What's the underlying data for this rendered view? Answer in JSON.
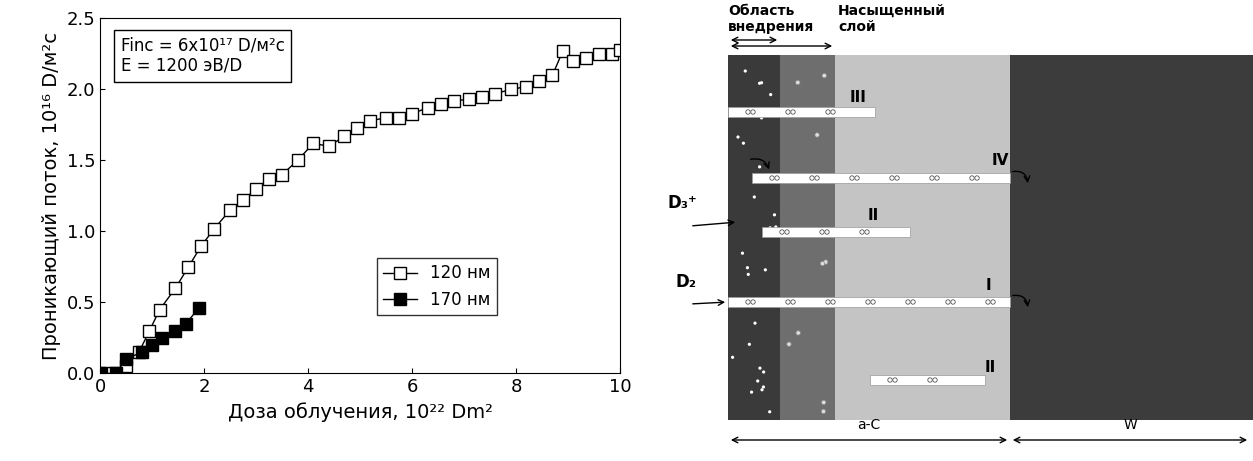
{
  "chart_data": {
    "type": "line",
    "x_label": "Доза облучения, 10²² Dm²",
    "y_label": "Проникающий поток, 10¹⁶ D/м²c",
    "annotations": [
      "Finc = 6x10¹⁷ D/м²c",
      "E = 1200 эВ/D"
    ],
    "series": [
      {
        "name": "120 нм",
        "color": "#000000",
        "marker": "open_square",
        "line_style": "solid",
        "x": [
          0.0,
          0.25,
          0.5,
          0.75,
          0.95,
          1.15,
          1.45,
          1.7,
          1.95,
          2.2,
          2.5,
          2.75,
          3.0,
          3.25,
          3.5,
          3.8,
          4.1,
          4.4,
          4.7,
          4.95,
          5.2,
          5.5,
          5.75,
          6.0,
          6.3,
          6.55,
          6.8,
          7.1,
          7.35,
          7.6,
          7.9,
          8.2,
          8.45,
          8.7,
          8.9,
          9.1,
          9.35,
          9.6,
          9.85,
          10.0
        ],
        "values": [
          0.0,
          0.0,
          0.05,
          0.15,
          0.3,
          0.45,
          0.6,
          0.75,
          0.9,
          1.02,
          1.15,
          1.22,
          1.3,
          1.37,
          1.4,
          1.5,
          1.62,
          1.6,
          1.67,
          1.73,
          1.78,
          1.8,
          1.8,
          1.83,
          1.87,
          1.9,
          1.92,
          1.93,
          1.95,
          1.97,
          2.0,
          2.02,
          2.06,
          2.1,
          2.27,
          2.2,
          2.22,
          2.25,
          2.25,
          2.28
        ]
      },
      {
        "name": "170 нм",
        "color": "#000000",
        "marker": "filled_square",
        "line_style": "solid",
        "x": [
          0.0,
          0.3,
          0.5,
          0.8,
          1.0,
          1.2,
          1.45,
          1.65,
          1.9
        ],
        "values": [
          0.0,
          0.0,
          0.1,
          0.15,
          0.2,
          0.25,
          0.3,
          0.35,
          0.46
        ]
      }
    ],
    "xlim": [
      0,
      10
    ],
    "xticks": [
      0,
      2,
      4,
      6,
      8,
      10
    ],
    "ylim": [
      0.0,
      2.5
    ],
    "yticks": [
      0.0,
      0.5,
      1.0,
      1.5,
      2.0,
      2.5
    ],
    "legend": "lower right",
    "grid": false
  },
  "diagram": {
    "header": {
      "implant_region": "Область\nвнедрения",
      "saturated_layer": "Насыщенный\nслой"
    },
    "incident": [
      "D₃⁺",
      "D₂"
    ],
    "cracks": [
      "III",
      "IV",
      "II",
      "I",
      "II"
    ],
    "layers": [
      "a-C",
      "W"
    ]
  }
}
